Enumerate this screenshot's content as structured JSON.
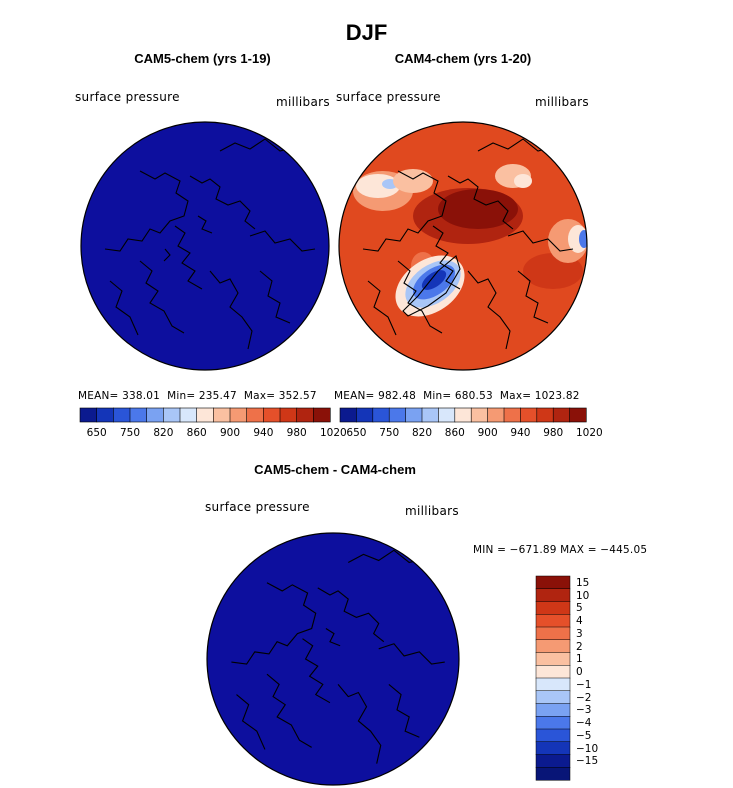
{
  "page_title": "DJF",
  "chart_data": [
    {
      "type": "heatmap",
      "title": "CAM5-chem (yrs 1-19)",
      "field_label": "surface pressure",
      "units_label": "millibars",
      "stats": {
        "mean_label": "MEAN=",
        "mean": "338.01",
        "min_label": "Min=",
        "min": "235.47",
        "max_label": "Max=",
        "max": "352.57"
      },
      "colorbar_ticks": [
        "650",
        "750",
        "820",
        "860",
        "900",
        "940",
        "980",
        "1020"
      ],
      "projection": "north polar stereographic",
      "dominant_value": "below 650"
    },
    {
      "type": "heatmap",
      "title": "CAM4-chem (yrs 1-20)",
      "field_label": "surface pressure",
      "units_label": "millibars",
      "stats": {
        "mean_label": "MEAN=",
        "mean": "982.48",
        "min_label": "Min=",
        "min": "680.53",
        "max_label": "Max=",
        "max": "1023.82"
      },
      "colorbar_ticks": [
        "650",
        "750",
        "820",
        "860",
        "900",
        "940",
        "980",
        "1020"
      ],
      "projection": "north polar stereographic",
      "dominant_value": "980-1020"
    },
    {
      "type": "heatmap",
      "title": "CAM5-chem - CAM4-chem",
      "field_label": "surface pressure",
      "units_label": "millibars",
      "stats_text": "MIN = −671.89 MAX = −445.05",
      "colorbar_ticks": [
        "15",
        "10",
        "5",
        "4",
        "3",
        "2",
        "1",
        "0",
        "−1",
        "−2",
        "−3",
        "−4",
        "−5",
        "−10",
        "−15"
      ],
      "projection": "north polar stereographic",
      "dominant_value": "below -15"
    }
  ],
  "palettes": {
    "abs_colors": [
      "#0b1a8f",
      "#1435b8",
      "#2a55d8",
      "#4b78ea",
      "#7aa2f2",
      "#a9c6f7",
      "#d8e7fb",
      "#fde6d8",
      "#fac0a1",
      "#f59a73",
      "#ee7149",
      "#e5502a",
      "#cf3717",
      "#b02410",
      "#8a1108"
    ],
    "diff_colors": [
      "#8a1108",
      "#b02410",
      "#cf3717",
      "#e5502a",
      "#ee7149",
      "#f59a73",
      "#fac0a1",
      "#fde6d8",
      "#d8e7fb",
      "#a9c6f7",
      "#7aa2f2",
      "#4b78ea",
      "#2a55d8",
      "#1435b8",
      "#0b1a8f",
      "#081577"
    ],
    "map_blue": "#0d0f9e",
    "map_red": "#e0491f",
    "map_darkred": "#a0160a"
  }
}
